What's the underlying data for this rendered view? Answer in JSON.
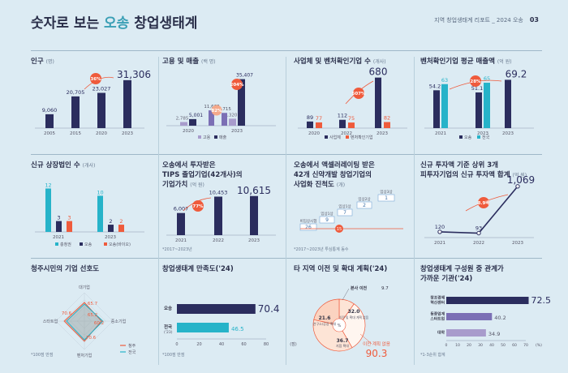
{
  "header": {
    "title_prefix": "숫자로 보는 ",
    "title_accent": "오송",
    "title_suffix": " 창업생태계",
    "report": "지역 창업생태계 리포트 _ 2024 오송",
    "page_number": "03"
  },
  "colors": {
    "navy": "#2b2d5e",
    "teal": "#26b3c9",
    "orange": "#ef5b3c",
    "purple": "#7b6fb5",
    "lavender": "#a89ccc",
    "salmon": "#f4a88a"
  },
  "chart_data": [
    {
      "id": "population",
      "type": "bar",
      "title": "인구",
      "unit": "(명)",
      "categories": [
        "2005",
        "2015",
        "2020",
        "2023"
      ],
      "values": [
        9060,
        20705,
        23027,
        31306
      ],
      "value_labels": [
        "9,060",
        "20,705",
        "23,027",
        "31,306"
      ],
      "annotations": [
        "36%"
      ],
      "ylim": [
        0,
        36000
      ]
    },
    {
      "id": "employment_sales",
      "type": "bar",
      "title": "고용",
      "title_mid": " 및 ",
      "title_b": "매출",
      "unit": "(백 명)",
      "categories": [
        "2020",
        "2023"
      ],
      "series": [
        {
          "name": "고용",
          "values": [
            2785,
            5320
          ]
        },
        {
          "name": "매출",
          "values": [
            5001,
            35407
          ]
        }
      ],
      "overlay_series": [
        {
          "values": [
            11663,
            9715
          ]
        }
      ],
      "value_labels": {
        "a": [
          "2,785",
          "5,320"
        ],
        "b": [
          "5,001",
          "35,407"
        ],
        "c": [
          "11,663",
          "9,715"
        ]
      },
      "annotations": [
        "204%",
        "82%"
      ],
      "ylim": [
        0,
        37000
      ]
    },
    {
      "id": "business_counts",
      "type": "bar",
      "title": "사업체 및 벤처확인기업 수",
      "unit": "(개사)",
      "categories": [
        "2020",
        "2022",
        "2023"
      ],
      "series": [
        {
          "name": "사업체",
          "values": [
            89,
            112,
            680
          ]
        },
        {
          "name": "벤처확인기업",
          "values": [
            77,
            75,
            82
          ]
        }
      ],
      "value_labels": {
        "a": [
          "89",
          "112",
          "680"
        ],
        "b": [
          "77",
          "75",
          "82"
        ]
      },
      "annotations": [
        "507%"
      ],
      "ylim": [
        0,
        720
      ]
    },
    {
      "id": "venture_avg_sales",
      "type": "bar",
      "title": "벤처확인기업 평균 매출액",
      "unit": "(억 원)",
      "categories": [
        "2021",
        "2023"
      ],
      "series": [
        {
          "name": "오송",
          "values": [
            54.2,
            51.1
          ]
        },
        {
          "name": "전국",
          "values": [
            63,
            65
          ]
        }
      ],
      "extra": {
        "value": 69.2,
        "label": "69.2"
      },
      "value_labels": {
        "a": [
          "54.2",
          "51.1"
        ],
        "b": [
          "63",
          "65"
        ]
      },
      "annotations": [
        "28%"
      ],
      "ylim": [
        0,
        72
      ]
    },
    {
      "id": "new_listings",
      "type": "bar",
      "title": "신규 상장법인 수",
      "unit": "(개사)",
      "categories": [
        "2021",
        "2023"
      ],
      "series": [
        {
          "name": "충청권",
          "values": [
            12,
            10
          ]
        },
        {
          "name": "오송",
          "values": [
            3,
            2
          ]
        },
        {
          "name": "오송(바이오)",
          "values": [
            3,
            2
          ]
        }
      ],
      "ylim": [
        0,
        13
      ]
    },
    {
      "id": "tips_value",
      "type": "bar",
      "title_lines": [
        "오송에서 투자받은",
        "TIPS 졸업기업(42개사)의",
        "기업가치"
      ],
      "unit": "(억 원)",
      "categories": [
        "2021",
        "2022",
        "2023"
      ],
      "values": [
        6007,
        10453,
        10615
      ],
      "value_labels": [
        "6,007",
        "10,453",
        "10,615"
      ],
      "annotations": [
        "77%"
      ],
      "note": "*2017~2023년",
      "ylim": [
        0,
        11000
      ]
    },
    {
      "id": "accelerating_stages",
      "type": "bar",
      "title_lines": [
        "오송에서 액셀러레이팅 받은",
        "42개 신약개발 창업기업의",
        "사업화 진척도"
      ],
      "unit": "(개)",
      "stages": [
        {
          "label": "비임상시험",
          "value": 26
        },
        {
          "label": "임상1상",
          "value": 9
        },
        {
          "label": "임상1상",
          "value": 7
        },
        {
          "label": "임상2상",
          "value": 2
        },
        {
          "label": "임상3상",
          "value": 1
        }
      ],
      "highlight_value": "15",
      "note": "*2017~2023년 투심통계 동수"
    },
    {
      "id": "top3_investment",
      "type": "line",
      "title_lines": [
        "신규 투자액 기준 상위 3개",
        "피투자기업의 신규 투자액 합계"
      ],
      "unit": "(억 원)",
      "categories": [
        "2021",
        "2022",
        "2023"
      ],
      "values": [
        120,
        93,
        1069
      ],
      "value_labels": [
        "120",
        "93",
        "1,069"
      ],
      "annotations": [
        "8.9배"
      ],
      "ylim": [
        0,
        1150
      ]
    },
    {
      "id": "preference",
      "type": "radar",
      "title": "청주시민의 기업 선호도",
      "axes": [
        "대기업",
        "중소기업",
        "벤처기업",
        "스타트업"
      ],
      "series": [
        {
          "name": "청주",
          "values": [
            65.7,
            60.2,
            70.6,
            70.6
          ]
        },
        {
          "name": "전국",
          "values": [
            60.0,
            65.2,
            66.0,
            63.0
          ]
        }
      ],
      "value_labels": [
        "65.7",
        "70.6",
        "65.2",
        "60.2",
        "70.6"
      ],
      "note": "*100점 만점"
    },
    {
      "id": "satisfaction",
      "type": "bar",
      "orientation": "horizontal",
      "title": "창업생태계 만족도('24)",
      "categories": [
        "오송",
        "전국"
      ],
      "category_sublabels": [
        "",
        "('23)"
      ],
      "values": [
        70.4,
        46.5
      ],
      "value_labels": [
        "70.4",
        "46.5"
      ],
      "xticks": [
        "0",
        "20",
        "40",
        "60",
        "80",
        "(점)"
      ],
      "note": "*100점 만점",
      "xlim": [
        0,
        80
      ]
    },
    {
      "id": "relocation_plan",
      "type": "pie",
      "title": "타 지역 이전 및 확대 계획('24)",
      "center_label": "%",
      "slices": [
        {
          "name": "본사 이전",
          "value": 9.7
        },
        {
          "name": "이전 및 확대 계획 없음",
          "value": 32.0
        },
        {
          "name": "지점 확대",
          "value": 36.7
        },
        {
          "name": "연구소/공장 확대",
          "value": 21.6
        }
      ],
      "slice_labels": {
        "top_name": "본사 이전",
        "top_value": "9.7",
        "right_value": "32.0",
        "right_name": "이전 및 확대 계획 없음",
        "bottom_value": "36.7",
        "bottom_name": "지점 확대",
        "left_value": "21.6",
        "left_name": "연구소/공장 확대"
      },
      "summary_label": "이전 계획 없음",
      "summary_value": "90.3"
    },
    {
      "id": "relation_level",
      "type": "bar",
      "orientation": "horizontal",
      "title_lines": [
        "창업생태계 구성원 중 관계가",
        "가까운 기관('24)"
      ],
      "categories": [
        "창조경제혁신센터",
        "동종업계 스타트업",
        "대학"
      ],
      "category_lines": [
        [
          "창조경제",
          "혁신센터"
        ],
        [
          "동종업계",
          "스타트업"
        ],
        [
          "대학"
        ]
      ],
      "values": [
        72.5,
        40.2,
        34.9
      ],
      "value_labels": [
        "72.5",
        "40.2",
        "34.9"
      ],
      "xticks": [
        "0",
        "10",
        "20",
        "30",
        "40",
        "50",
        "60",
        "70",
        "(%)"
      ],
      "note": "*1-3순위 합계",
      "xlim": [
        0,
        70
      ]
    }
  ]
}
